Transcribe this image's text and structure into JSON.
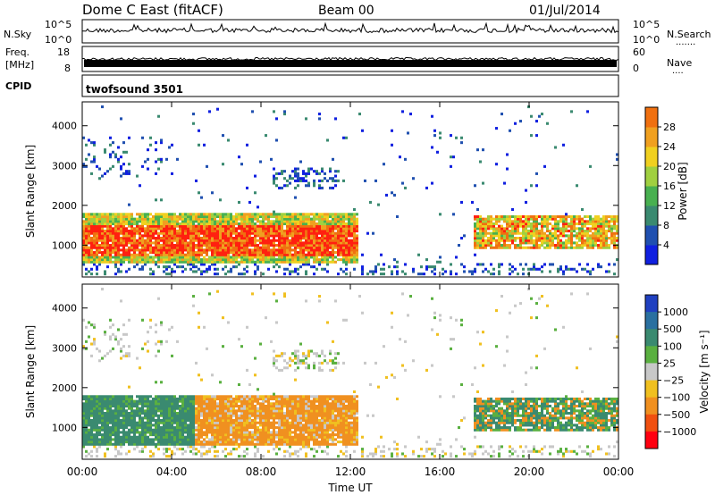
{
  "header": {
    "title": "Dome C East (fitACF)",
    "beam": "Beam 00",
    "date": "01/Jul/2014"
  },
  "strips": {
    "nsky_label": "N.Sky",
    "nsky_top": "10^5",
    "nsky_bottom": "10^0",
    "nsearch_label": "N.Search",
    "nsearch_dots": ".......",
    "freq_label_1": "Freq.",
    "freq_label_2": "[MHz]",
    "freq_top": "18",
    "freq_bottom": "8",
    "nave_top": "60",
    "nave_bottom": "0",
    "nave_label": "Nave",
    "nave_dots": "....",
    "cpid_label": "CPID",
    "cpid_value": "twofsound 3501"
  },
  "colors": {
    "power_scale": [
      "#1020e0",
      "#2050b0",
      "#3a8a70",
      "#48b050",
      "#a0d040",
      "#f0d020",
      "#f0a020",
      "#f07010",
      "#ff2010"
    ],
    "velocity_scale": [
      "#2040c0",
      "#2a70a0",
      "#3a8a70",
      "#5ab040",
      "#c8c8c8",
      "#f0c020",
      "#f09020",
      "#f05010",
      "#ff0010"
    ]
  },
  "chart_data": [
    {
      "type": "heatmap",
      "name": "power",
      "ylabel": "Slant Range [km]",
      "xlabel": "",
      "ylim": [
        200,
        4600
      ],
      "xlim": [
        0,
        24
      ],
      "yticks": [
        "1000",
        "2000",
        "3000",
        "4000"
      ],
      "colorbar_label": "Power [dB]",
      "colorbar_ticks": [
        "4",
        "8",
        "12",
        "16",
        "20",
        "24",
        "28"
      ],
      "colorbar_range": [
        0,
        32
      ],
      "features": [
        {
          "t0": 0,
          "t1": 12.3,
          "r0": 500,
          "r1": 1800,
          "level": "high"
        },
        {
          "t0": 17.5,
          "t1": 24,
          "r0": 900,
          "r1": 1700,
          "level": "high"
        },
        {
          "t0": 8.5,
          "t1": 11.5,
          "r0": 2400,
          "r1": 2900,
          "level": "low"
        },
        {
          "t0": 0,
          "t1": 4,
          "r0": 2800,
          "r1": 3600,
          "level": "low"
        }
      ]
    },
    {
      "type": "heatmap",
      "name": "velocity",
      "ylabel": "Slant Range [km]",
      "xlabel": "Time UT",
      "ylim": [
        200,
        4600
      ],
      "xlim": [
        0,
        24
      ],
      "yticks": [
        "1000",
        "2000",
        "3000",
        "4000"
      ],
      "xticks": [
        "00:00",
        "04:00",
        "08:00",
        "12:00",
        "16:00",
        "20:00",
        "00:00"
      ],
      "colorbar_label": "Velocity [m s⁻¹]",
      "colorbar_ticks": [
        "1000",
        "500",
        "100",
        "25",
        "−25",
        "−100",
        "−500",
        "−1000"
      ],
      "features": [
        {
          "t0": 0,
          "t1": 5,
          "r0": 500,
          "r1": 1800,
          "level": "positive"
        },
        {
          "t0": 5,
          "t1": 12.3,
          "r0": 500,
          "r1": 1800,
          "level": "negative"
        },
        {
          "t0": 17.5,
          "t1": 24,
          "r0": 900,
          "r1": 1700,
          "level": "mixed"
        }
      ]
    }
  ]
}
